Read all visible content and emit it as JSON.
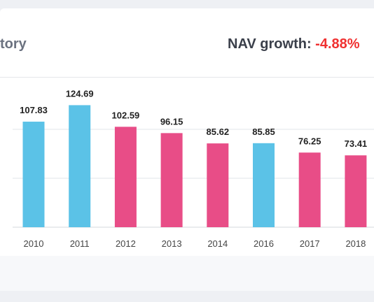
{
  "card": {
    "title": "tory",
    "nav_growth_label": "NAV growth:",
    "nav_growth_value": "-4.88%"
  },
  "colors": {
    "up": "#5bc2e7",
    "down": "#e84d87",
    "grid": "#e2e4e8",
    "label": "#222222",
    "tick": "#444444"
  },
  "chart_data": {
    "type": "bar",
    "categories": [
      "2010",
      "2011",
      "2012",
      "2013",
      "2014",
      "2016",
      "2017",
      "2018"
    ],
    "values": [
      107.83,
      124.69,
      102.59,
      96.15,
      85.62,
      85.85,
      76.25,
      73.41
    ],
    "labels": [
      "107.83",
      "124.69",
      "102.59",
      "96.15",
      "85.62",
      "85.85",
      "76.25",
      "73.41"
    ],
    "trend": [
      "up",
      "up",
      "down",
      "down",
      "down",
      "up",
      "down",
      "down"
    ],
    "ylim": [
      0,
      150
    ],
    "grid": true,
    "legend": "none"
  }
}
